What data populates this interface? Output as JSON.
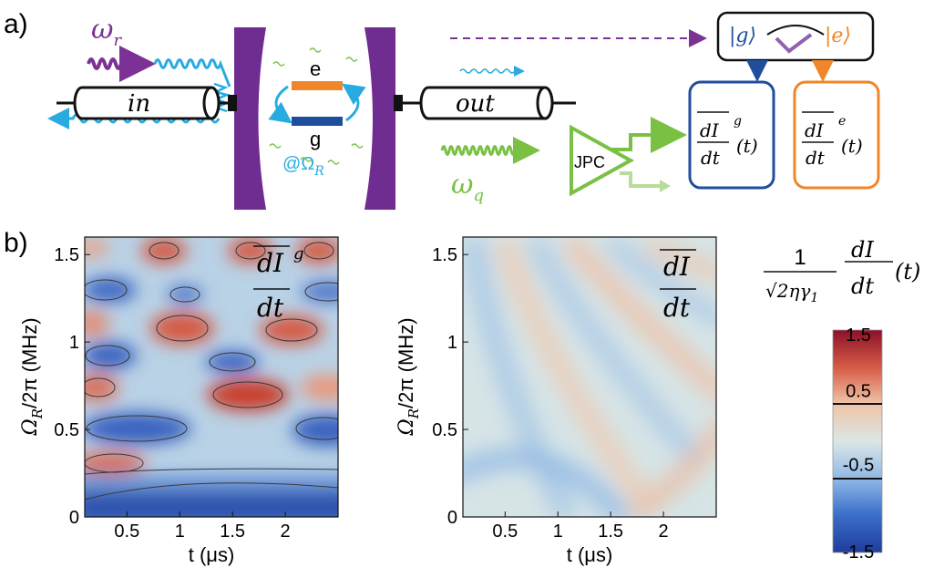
{
  "panel_a": {
    "label": "a)",
    "in_label": "in",
    "out_label": "out",
    "omega_r": "ω",
    "omega_r_sub": "r",
    "omega_q": "ω",
    "omega_q_sub": "q",
    "level_e": "e",
    "level_g": "g",
    "drive_label": "@Ω",
    "drive_sub": "R",
    "amp_label": "JPC",
    "ket_g": "|g⟩",
    "ket_e": "|e⟩",
    "box_g_num": "dI",
    "box_g_sup": "g",
    "box_g_den": "dt",
    "box_g_arg": "(t)",
    "box_e_num": "dI",
    "box_e_sup": "e",
    "box_e_den": "dt",
    "box_e_arg": "(t)",
    "colors": {
      "purple": "#7b3294",
      "cyan": "#29abe2",
      "green": "#7ac143",
      "orange": "#f0862a",
      "blue": "#1f4e9c"
    }
  },
  "panel_b": {
    "label": "b)",
    "ylabel": "Ω",
    "ylabel_sub": "R",
    "ylabel_rest": "/2π (MHz)",
    "xlabel": "t (μs)",
    "left_overlay_num": "dI",
    "left_overlay_sup": "g",
    "left_overlay_den": "dt",
    "right_overlay_num": "dI",
    "right_overlay_den": "dt",
    "colorbar_title_num": "1",
    "colorbar_title_den": "√2ηγ",
    "colorbar_title_den_sub": "1",
    "colorbar_title_frac_num": "dI",
    "colorbar_title_frac_den": "dt",
    "colorbar_title_arg": "(t)",
    "colorbar_ticks": [
      "1.5",
      "0.5",
      "-0.5",
      "-1.5"
    ]
  },
  "chart_data": [
    {
      "type": "heatmap",
      "xlabel": "t (μs)",
      "ylabel": "Ω_R/2π (MHz)",
      "xlim": [
        0.1,
        2.5
      ],
      "ylim": [
        0,
        1.6
      ],
      "x_ticks": [
        "0.5",
        "1",
        "1.5",
        "2"
      ],
      "y_ticks": [
        "0",
        "0.5",
        "1",
        "1.5"
      ],
      "zlim": [
        -1.5,
        1.5
      ],
      "contours": true
    },
    {
      "type": "heatmap",
      "xlabel": "t (μs)",
      "ylabel": "Ω_R/2π (MHz)",
      "xlim": [
        0.1,
        2.5
      ],
      "ylim": [
        0,
        1.6
      ],
      "x_ticks": [
        "0.5",
        "1",
        "1.5",
        "2"
      ],
      "y_ticks": [
        "0",
        "0.5",
        "1",
        "1.5"
      ],
      "zlim": [
        -1.5,
        1.5
      ],
      "contours": false
    }
  ]
}
